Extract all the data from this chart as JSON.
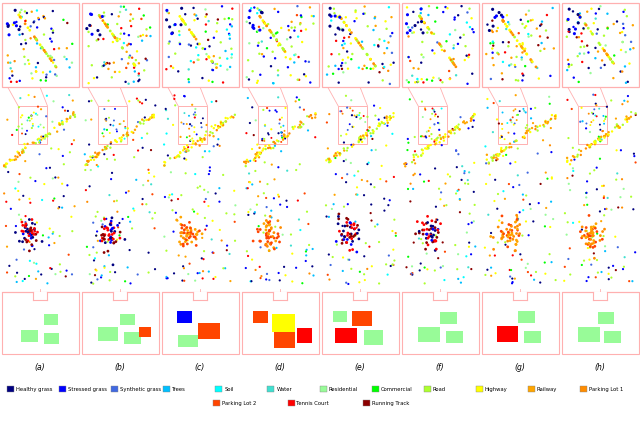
{
  "fig_width": 6.4,
  "fig_height": 4.31,
  "labels": [
    "(a)",
    "(b)",
    "(c)",
    "(d)",
    "(e)",
    "(f)",
    "(g)",
    "(h)"
  ],
  "panel_border_color": "#FFB0B0",
  "background_color": "#FFFFFF",
  "num_cols": 8,
  "legend_entries_row1": [
    {
      "label": "Healthy grass",
      "color": "#000080"
    },
    {
      "label": "Stressed grass",
      "color": "#0000FF"
    },
    {
      "label": "Synthetic grass",
      "color": "#4169E1"
    },
    {
      "label": "Trees",
      "color": "#00BFFF"
    },
    {
      "label": "Soil",
      "color": "#00FFFF"
    },
    {
      "label": "Water",
      "color": "#40E0D0"
    },
    {
      "label": "Residential",
      "color": "#98FB98"
    },
    {
      "label": "Commercial",
      "color": "#00FF00"
    },
    {
      "label": "Road",
      "color": "#ADFF2F"
    },
    {
      "label": "Highway",
      "color": "#FFFF00"
    },
    {
      "label": "Railway",
      "color": "#FFA500"
    },
    {
      "label": "Parking Lot 1",
      "color": "#FF8C00"
    }
  ],
  "legend_entries_row2": [
    {
      "label": "Parking Lot 2",
      "color": "#FF4500"
    },
    {
      "label": "Tennis Court",
      "color": "#FF0000"
    },
    {
      "label": "Running Track",
      "color": "#8B0000"
    }
  ]
}
